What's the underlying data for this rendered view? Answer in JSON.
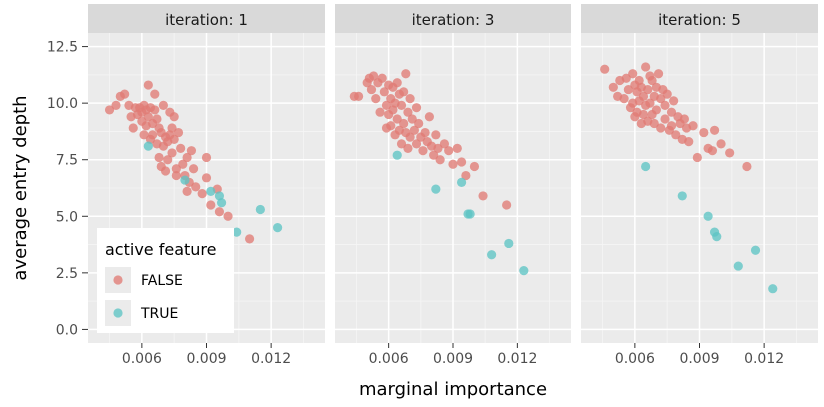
{
  "chart_data": {
    "type": "scatter",
    "xlabel": "marginal importance",
    "ylabel": "average entry depth",
    "xlim": [
      0.0035,
      0.0145
    ],
    "ylim": [
      -0.6,
      13.1
    ],
    "x_ticks": [
      0.006,
      0.009,
      0.012
    ],
    "x_tick_labels": [
      "0.006",
      "0.009",
      "0.012"
    ],
    "y_ticks": [
      0,
      2.5,
      5,
      7.5,
      10,
      12.5
    ],
    "y_tick_labels": [
      "0.0",
      "2.5",
      "5.0",
      "7.5",
      "10.0",
      "12.5"
    ],
    "grid": true,
    "legend": {
      "title": "active feature",
      "position": "bottom-left",
      "entries": [
        {
          "label": "FALSE",
          "color": "#e07b74"
        },
        {
          "label": "TRUE",
          "color": "#5ec4c4"
        }
      ]
    },
    "panels": [
      {
        "strip": "iteration: 1",
        "series": [
          {
            "name": "FALSE",
            "points": [
              [
                0.0045,
                9.7
              ],
              [
                0.0048,
                9.9
              ],
              [
                0.005,
                10.3
              ],
              [
                0.0052,
                10.4
              ],
              [
                0.0054,
                9.9
              ],
              [
                0.0055,
                9.4
              ],
              [
                0.0056,
                8.9
              ],
              [
                0.0057,
                9.8
              ],
              [
                0.0058,
                9.5
              ],
              [
                0.0059,
                9.8
              ],
              [
                0.006,
                9.6
              ],
              [
                0.006,
                9.2
              ],
              [
                0.0061,
                9.9
              ],
              [
                0.0061,
                8.6
              ],
              [
                0.0062,
                9.7
              ],
              [
                0.0062,
                9.0
              ],
              [
                0.0063,
                10.8
              ],
              [
                0.0063,
                9.4
              ],
              [
                0.0064,
                8.4
              ],
              [
                0.0064,
                9.8
              ],
              [
                0.0065,
                9.1
              ],
              [
                0.0065,
                8.6
              ],
              [
                0.0066,
                10.4
              ],
              [
                0.0066,
                9.7
              ],
              [
                0.0067,
                9.3
              ],
              [
                0.0067,
                8.2
              ],
              [
                0.0068,
                8.9
              ],
              [
                0.0068,
                7.6
              ],
              [
                0.0069,
                8.7
              ],
              [
                0.0069,
                7.2
              ],
              [
                0.007,
                9.9
              ],
              [
                0.007,
                8.1
              ],
              [
                0.0071,
                8.5
              ],
              [
                0.0071,
                7.0
              ],
              [
                0.0072,
                8.3
              ],
              [
                0.0072,
                7.5
              ],
              [
                0.0073,
                8.6
              ],
              [
                0.0073,
                9.6
              ],
              [
                0.0074,
                8.9
              ],
              [
                0.0074,
                7.8
              ],
              [
                0.0075,
                8.4
              ],
              [
                0.0075,
                9.4
              ],
              [
                0.0076,
                7.1
              ],
              [
                0.0076,
                6.8
              ],
              [
                0.0077,
                8.7
              ],
              [
                0.0078,
                8.0
              ],
              [
                0.0079,
                7.3
              ],
              [
                0.008,
                6.8
              ],
              [
                0.0081,
                7.6
              ],
              [
                0.0081,
                6.1
              ],
              [
                0.0082,
                6.5
              ],
              [
                0.0083,
                7.9
              ],
              [
                0.0084,
                7.1
              ],
              [
                0.0085,
                6.3
              ],
              [
                0.0088,
                6.0
              ],
              [
                0.009,
                7.6
              ],
              [
                0.009,
                6.7
              ],
              [
                0.0092,
                5.5
              ],
              [
                0.0095,
                6.2
              ],
              [
                0.0096,
                5.2
              ],
              [
                0.01,
                5.0
              ],
              [
                0.011,
                4.0
              ]
            ]
          },
          {
            "name": "TRUE",
            "points": [
              [
                0.0063,
                8.1
              ],
              [
                0.008,
                6.6
              ],
              [
                0.0092,
                6.1
              ],
              [
                0.0096,
                5.9
              ],
              [
                0.0097,
                5.6
              ],
              [
                0.0104,
                4.3
              ],
              [
                0.0115,
                5.3
              ],
              [
                0.0123,
                4.5
              ]
            ]
          }
        ]
      },
      {
        "strip": "iteration: 3",
        "series": [
          {
            "name": "FALSE",
            "points": [
              [
                0.0044,
                10.3
              ],
              [
                0.0046,
                10.3
              ],
              [
                0.005,
                10.9
              ],
              [
                0.0051,
                11.1
              ],
              [
                0.0052,
                10.6
              ],
              [
                0.0053,
                11.2
              ],
              [
                0.0054,
                10.2
              ],
              [
                0.0055,
                10.9
              ],
              [
                0.0056,
                9.6
              ],
              [
                0.0057,
                11.1
              ],
              [
                0.0058,
                10.5
              ],
              [
                0.0059,
                9.9
              ],
              [
                0.0059,
                8.9
              ],
              [
                0.006,
                10.8
              ],
              [
                0.006,
                9.5
              ],
              [
                0.0061,
                10.2
              ],
              [
                0.0061,
                9.0
              ],
              [
                0.0062,
                10.7
              ],
              [
                0.0062,
                9.7
              ],
              [
                0.0063,
                10.0
              ],
              [
                0.0063,
                8.6
              ],
              [
                0.0064,
                10.9
              ],
              [
                0.0064,
                9.3
              ],
              [
                0.0065,
                10.4
              ],
              [
                0.0065,
                8.8
              ],
              [
                0.0066,
                9.9
              ],
              [
                0.0066,
                8.2
              ],
              [
                0.0067,
                10.5
              ],
              [
                0.0067,
                9.1
              ],
              [
                0.0068,
                11.3
              ],
              [
                0.0068,
                8.7
              ],
              [
                0.0069,
                9.6
              ],
              [
                0.0069,
                8.0
              ],
              [
                0.007,
                10.2
              ],
              [
                0.007,
                8.5
              ],
              [
                0.0071,
                9.3
              ],
              [
                0.0072,
                8.8
              ],
              [
                0.0073,
                9.8
              ],
              [
                0.0073,
                8.2
              ],
              [
                0.0074,
                9.1
              ],
              [
                0.0075,
                8.5
              ],
              [
                0.0076,
                7.9
              ],
              [
                0.0077,
                8.7
              ],
              [
                0.0078,
                8.3
              ],
              [
                0.0079,
                9.4
              ],
              [
                0.008,
                8.1
              ],
              [
                0.0081,
                7.7
              ],
              [
                0.0082,
                8.6
              ],
              [
                0.0083,
                8.0
              ],
              [
                0.0084,
                7.5
              ],
              [
                0.0086,
                8.2
              ],
              [
                0.0088,
                7.9
              ],
              [
                0.009,
                7.3
              ],
              [
                0.0092,
                8.0
              ],
              [
                0.0094,
                7.4
              ],
              [
                0.0096,
                6.8
              ],
              [
                0.01,
                7.2
              ],
              [
                0.0104,
                5.9
              ],
              [
                0.0115,
                5.5
              ]
            ]
          },
          {
            "name": "TRUE",
            "points": [
              [
                0.0064,
                7.7
              ],
              [
                0.0082,
                6.2
              ],
              [
                0.0094,
                6.5
              ],
              [
                0.0097,
                5.1
              ],
              [
                0.0098,
                5.1
              ],
              [
                0.0108,
                3.3
              ],
              [
                0.0116,
                3.8
              ],
              [
                0.0123,
                2.6
              ]
            ]
          }
        ]
      },
      {
        "strip": "iteration: 5",
        "series": [
          {
            "name": "FALSE",
            "points": [
              [
                0.0046,
                11.5
              ],
              [
                0.005,
                10.7
              ],
              [
                0.0052,
                10.3
              ],
              [
                0.0053,
                11.0
              ],
              [
                0.0055,
                10.2
              ],
              [
                0.0056,
                11.1
              ],
              [
                0.0057,
                10.6
              ],
              [
                0.0058,
                9.8
              ],
              [
                0.0059,
                11.3
              ],
              [
                0.0059,
                10.0
              ],
              [
                0.006,
                10.8
              ],
              [
                0.006,
                9.4
              ],
              [
                0.0061,
                10.5
              ],
              [
                0.0061,
                9.6
              ],
              [
                0.0062,
                11.0
              ],
              [
                0.0062,
                10.1
              ],
              [
                0.0063,
                9.1
              ],
              [
                0.0063,
                10.7
              ],
              [
                0.0064,
                9.5
              ],
              [
                0.0064,
                10.3
              ],
              [
                0.0065,
                11.6
              ],
              [
                0.0065,
                9.9
              ],
              [
                0.0066,
                10.6
              ],
              [
                0.0066,
                9.2
              ],
              [
                0.0067,
                11.2
              ],
              [
                0.0067,
                10.0
              ],
              [
                0.0068,
                9.5
              ],
              [
                0.0068,
                11.0
              ],
              [
                0.0069,
                10.3
              ],
              [
                0.0069,
                9.1
              ],
              [
                0.007,
                10.7
              ],
              [
                0.007,
                9.7
              ],
              [
                0.0071,
                11.3
              ],
              [
                0.0072,
                10.2
              ],
              [
                0.0072,
                8.9
              ],
              [
                0.0073,
                10.6
              ],
              [
                0.0074,
                9.3
              ],
              [
                0.0074,
                9.9
              ],
              [
                0.0075,
                10.4
              ],
              [
                0.0076,
                8.8
              ],
              [
                0.0077,
                9.6
              ],
              [
                0.0077,
                9.0
              ],
              [
                0.0078,
                10.1
              ],
              [
                0.0079,
                8.6
              ],
              [
                0.008,
                9.4
              ],
              [
                0.0081,
                9.1
              ],
              [
                0.0082,
                8.4
              ],
              [
                0.0083,
                9.3
              ],
              [
                0.0084,
                8.9
              ],
              [
                0.0085,
                8.3
              ],
              [
                0.0087,
                9.0
              ],
              [
                0.0089,
                7.6
              ],
              [
                0.0092,
                8.7
              ],
              [
                0.0094,
                8.0
              ],
              [
                0.0096,
                7.9
              ],
              [
                0.0097,
                8.8
              ],
              [
                0.01,
                8.2
              ],
              [
                0.0104,
                7.8
              ],
              [
                0.0112,
                7.2
              ]
            ]
          },
          {
            "name": "TRUE",
            "points": [
              [
                0.0065,
                7.2
              ],
              [
                0.0082,
                5.9
              ],
              [
                0.0094,
                5.0
              ],
              [
                0.0097,
                4.3
              ],
              [
                0.0098,
                4.1
              ],
              [
                0.0108,
                2.8
              ],
              [
                0.0116,
                3.5
              ],
              [
                0.0124,
                1.8
              ]
            ]
          }
        ]
      }
    ]
  }
}
